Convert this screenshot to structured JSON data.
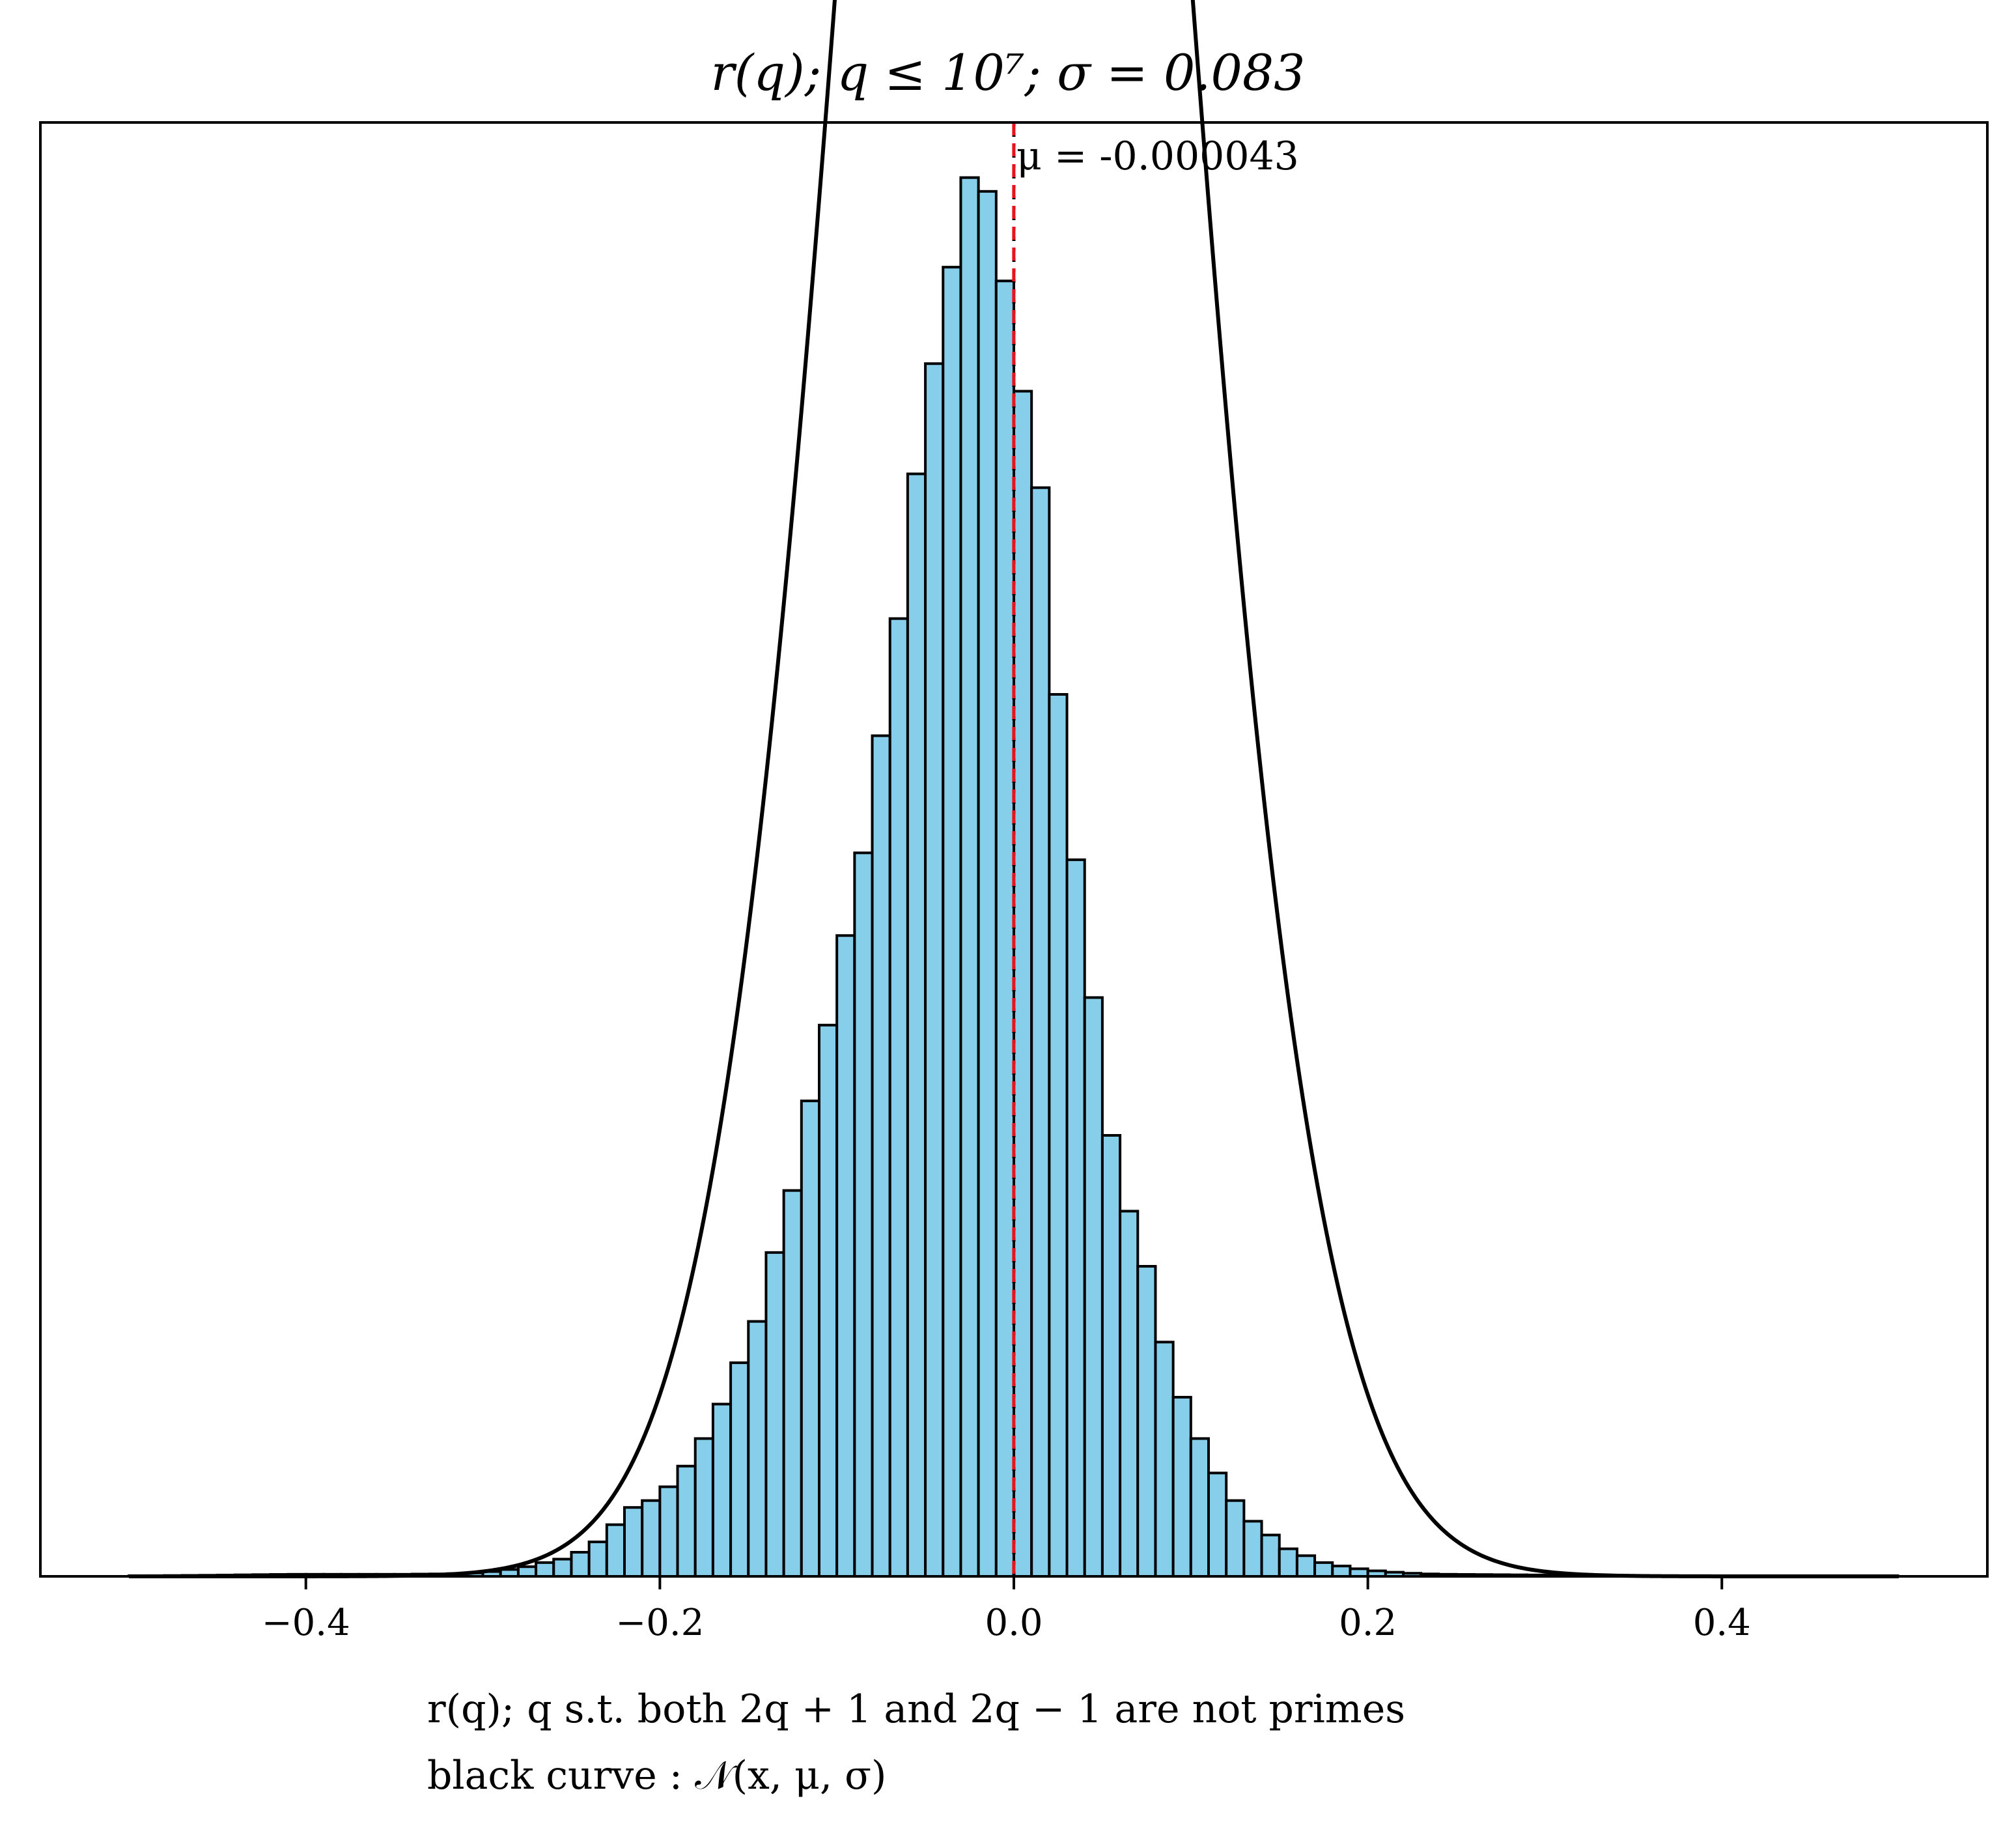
{
  "chart_data": {
    "type": "bar",
    "title": "r(q); q ≤ 10⁷; σ = 0.083",
    "xlabel_lines": [
      "r(q); q s.t. both 2q + 1 and 2q − 1 are not primes",
      "black curve : 𝒩(x, μ, σ)"
    ],
    "xlim": [
      -0.55,
      0.55
    ],
    "ylim": [
      0,
      2.11
    ],
    "x_ticks": [
      -0.4,
      -0.2,
      0.0,
      0.2,
      0.4
    ],
    "x_tick_labels": [
      "−0.4",
      "−0.2",
      "0.0",
      "0.2",
      "0.4"
    ],
    "y_ticks_shown": false,
    "grid": false,
    "histogram": {
      "bin_range": [
        -0.5,
        0.5
      ],
      "bin_width": 0.01,
      "fill_color": "#87ceeb",
      "edge_color": "#000000",
      "densities": [
        0.0008,
        0.001,
        0.0012,
        0.0014,
        0.0016,
        0.0019,
        0.0022,
        0.0025,
        0.0028,
        0.003,
        0.003,
        0.003,
        0.003,
        0.003,
        0.003,
        0.003,
        0.0033,
        0.0035,
        0.004,
        0.005,
        0.007,
        0.01,
        0.014,
        0.02,
        0.025,
        0.035,
        0.05,
        0.075,
        0.1,
        0.11,
        0.13,
        0.16,
        0.2,
        0.25,
        0.31,
        0.37,
        0.47,
        0.56,
        0.69,
        0.8,
        0.93,
        1.05,
        1.22,
        1.39,
        1.6,
        1.76,
        1.9,
        2.03,
        2.01,
        1.88,
        1.72,
        1.58,
        1.28,
        1.04,
        0.84,
        0.64,
        0.53,
        0.45,
        0.34,
        0.26,
        0.2,
        0.15,
        0.11,
        0.08,
        0.06,
        0.04,
        0.03,
        0.02,
        0.015,
        0.011,
        0.008,
        0.006,
        0.0045,
        0.0035,
        0.003,
        0.0028,
        0.0026,
        0.0024,
        0.0022,
        0.002,
        0.0018,
        0.0016,
        0.0014,
        0.0012,
        0.001,
        0.0009,
        0.0008,
        0.0007,
        0.0006,
        0.0005,
        0.0005,
        0.0004,
        0.0004,
        0.0003,
        0.0003,
        0.0003,
        0.0002,
        0.0002,
        0.0002,
        0.0002
      ]
    },
    "normal_curve": {
      "mu": -4.3e-05,
      "sigma": 0.083,
      "color": "#000000",
      "range": [
        -0.5,
        0.5
      ]
    },
    "mean_line": {
      "x": -4.3e-05,
      "color": "#e8141b",
      "style": "dashed",
      "label": "μ = -0.000043"
    },
    "zero_line": {
      "x": 0.0,
      "color": "#000000",
      "style": "dotted"
    }
  }
}
